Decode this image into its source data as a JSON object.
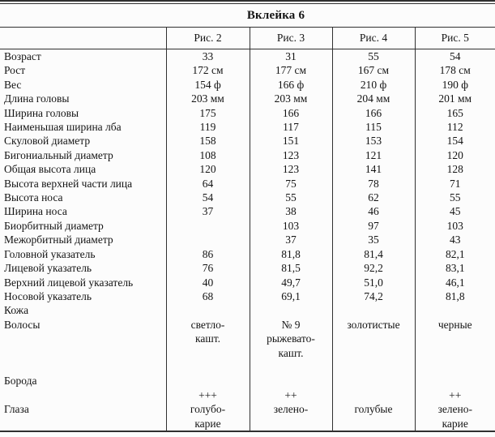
{
  "title": "Вклейка 6",
  "colors": {
    "background": "#fcfcfc",
    "rule": "#303030",
    "text": "#141414"
  },
  "table": {
    "headers": [
      "",
      "Рис. 2",
      "Рис. 3",
      "Рис. 4",
      "Рис. 5"
    ],
    "rows": [
      [
        "Возраст",
        "33",
        "31",
        "55",
        "54"
      ],
      [
        "Рост",
        "172 см",
        "177 см",
        "167 см",
        "178 см"
      ],
      [
        "Вес",
        "154 ф",
        "166 ф",
        "210 ф",
        "190 ф"
      ],
      [
        "Длина головы",
        "203 мм",
        "203 мм",
        "204 мм",
        "201 мм"
      ],
      [
        "Ширина головы",
        "175",
        "166",
        "166",
        "165"
      ],
      [
        "Наименьшая ширина лба",
        "119",
        "117",
        "115",
        "112"
      ],
      [
        "Скуловой диаметр",
        "158",
        "151",
        "153",
        "154"
      ],
      [
        "Бигониальный диаметр",
        "108",
        "123",
        "121",
        "120"
      ],
      [
        "Общая высота лица",
        "120",
        "123",
        "141",
        "128"
      ],
      [
        "Высота верхней части лица",
        "64",
        "75",
        "78",
        "71"
      ],
      [
        "Высота носа",
        "54",
        "55",
        "62",
        "55"
      ],
      [
        "Ширина носа",
        "37",
        "38",
        "46",
        "45"
      ],
      [
        "Биорбитный диаметр",
        "",
        "103",
        "97",
        "103"
      ],
      [
        "Межорбитный диаметр",
        "",
        "37",
        "35",
        "43"
      ],
      [
        "Головной указатель",
        "86",
        "81,8",
        "81,4",
        "82,1"
      ],
      [
        "Лицевой указатель",
        "76",
        "81,5",
        "92,2",
        "83,1"
      ],
      [
        "Верхний лицевой указатель",
        "40",
        "49,7",
        "51,0",
        "46,1"
      ],
      [
        "Носовой указатель",
        "68",
        "69,1",
        "74,2",
        "81,8"
      ],
      [
        "Кожа",
        "",
        "",
        "",
        ""
      ],
      [
        "Волосы",
        "светло-",
        "№ 9",
        "золотистые",
        "черные"
      ],
      [
        "",
        "кашт.",
        "рыжевато-",
        "",
        ""
      ],
      [
        "",
        "",
        "кашт.",
        "",
        ""
      ],
      [
        "",
        "",
        "",
        "",
        ""
      ],
      [
        "Борода",
        "",
        "",
        "",
        ""
      ],
      [
        "",
        "+++",
        "++",
        "",
        "++"
      ],
      [
        "Глаза",
        "голубо-",
        "зелено-",
        "голубые",
        "зелено-"
      ],
      [
        "",
        "карие",
        "",
        "",
        "карие"
      ]
    ]
  }
}
